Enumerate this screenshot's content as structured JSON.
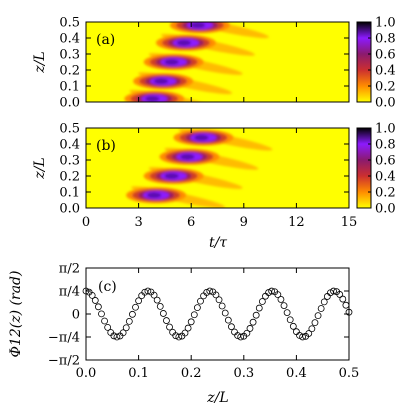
{
  "chart_data": [
    {
      "type": "heatmap",
      "panel_label": "(a)",
      "xlabel": "",
      "ylabel": "z/L",
      "xlim": [
        0,
        15
      ],
      "ylim": [
        0.0,
        0.5
      ],
      "y_ticks": [
        "0.0",
        "0.1",
        "0.2",
        "0.3",
        "0.4",
        "0.5"
      ],
      "colorbar_ticks": [
        "0.0",
        "0.2",
        "0.4",
        "0.6",
        "0.8",
        "1.0"
      ],
      "colorbar_range": [
        0.0,
        1.0
      ],
      "colormap": [
        "#ffff00",
        "#ff8c00",
        "#cc2f2f",
        "#8b1a6e",
        "#8c1aff",
        "#000000"
      ],
      "peaks": [
        {
          "t": 3.9,
          "z": 0.02,
          "value": 0.9
        },
        {
          "t": 4.4,
          "z": 0.13,
          "value": 0.95
        },
        {
          "t": 5.0,
          "z": 0.25,
          "value": 0.95
        },
        {
          "t": 5.7,
          "z": 0.37,
          "value": 0.95
        },
        {
          "t": 6.5,
          "z": 0.48,
          "value": 0.95
        }
      ]
    },
    {
      "type": "heatmap",
      "panel_label": "(b)",
      "xlabel": "t/τ",
      "ylabel": "z/L",
      "xlim": [
        0,
        15
      ],
      "ylim": [
        0.0,
        0.5
      ],
      "x_ticks": [
        "0",
        "3",
        "6",
        "9",
        "12",
        "15"
      ],
      "y_ticks": [
        "0.0",
        "0.1",
        "0.2",
        "0.3",
        "0.4",
        "0.5"
      ],
      "colorbar_ticks": [
        "0.0",
        "0.2",
        "0.4",
        "0.6",
        "0.8",
        "1.0"
      ],
      "colorbar_range": [
        0.0,
        1.0
      ],
      "peaks": [
        {
          "t": 4.0,
          "z": 0.08,
          "value": 0.95
        },
        {
          "t": 5.0,
          "z": 0.2,
          "value": 0.95
        },
        {
          "t": 5.9,
          "z": 0.32,
          "value": 0.95
        },
        {
          "t": 6.7,
          "z": 0.44,
          "value": 0.95
        }
      ]
    },
    {
      "type": "scatter",
      "panel_label": "(c)",
      "xlabel": "z/L",
      "ylabel": "Φ12(z) (rad)",
      "xlim": [
        0.0,
        0.5
      ],
      "ylim": [
        -1.5708,
        1.5708
      ],
      "x_ticks": [
        "0.0",
        "0.1",
        "0.2",
        "0.3",
        "0.4",
        "0.5"
      ],
      "y_ticks": [
        "−π/2",
        "−π/4",
        "0",
        "π/4",
        "π/2"
      ],
      "series": [
        {
          "marker": "open-circle",
          "amplitude": 0.785,
          "period": 0.118,
          "phase_offset": 0.0,
          "x_start": 0.0,
          "x_end": 0.5,
          "n_points": 86
        }
      ]
    }
  ]
}
